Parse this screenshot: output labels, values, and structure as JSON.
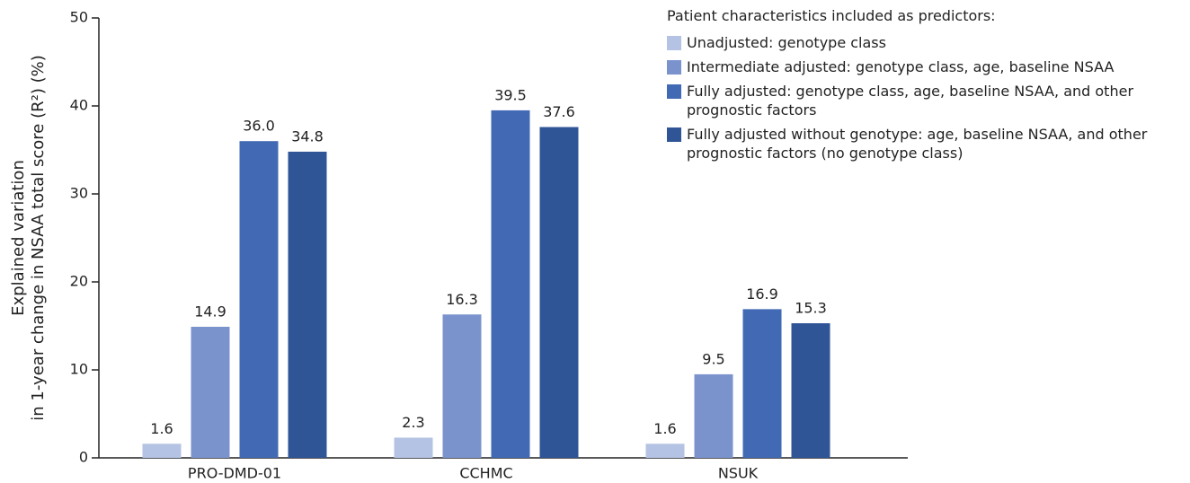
{
  "chart_data": {
    "type": "bar",
    "ylabel": [
      "Explained variation",
      "in 1-year change in NSAA total score (R²) (%)"
    ],
    "categories": [
      "PRO-DMD-01",
      "CCHMC",
      "NSUK"
    ],
    "legend_title": "Patient characteristics included as predictors:",
    "series": [
      {
        "name": "Unadjusted: genotype class",
        "color": "#b4c3e3",
        "values": [
          1.6,
          2.3,
          1.6
        ]
      },
      {
        "name": "Intermediate adjusted: genotype class, age, baseline NSAA",
        "color": "#7b93cd",
        "values": [
          14.9,
          16.3,
          9.5
        ]
      },
      {
        "name": "Fully adjusted: genotype class, age, baseline NSAA, and other prognostic factors",
        "color": "#4169b4",
        "values": [
          36.0,
          39.5,
          16.9
        ],
        "value_labels": [
          "36.0",
          "39.5",
          "16.9"
        ]
      },
      {
        "name": "Fully adjusted without genotype: age, baseline NSAA, and other prognostic factors (no genotype class)",
        "color": "#2f5597",
        "values": [
          34.8,
          37.6,
          15.3
        ]
      }
    ],
    "ylim": [
      0,
      50
    ],
    "yticks": [
      0,
      10,
      20,
      30,
      40,
      50
    ]
  }
}
